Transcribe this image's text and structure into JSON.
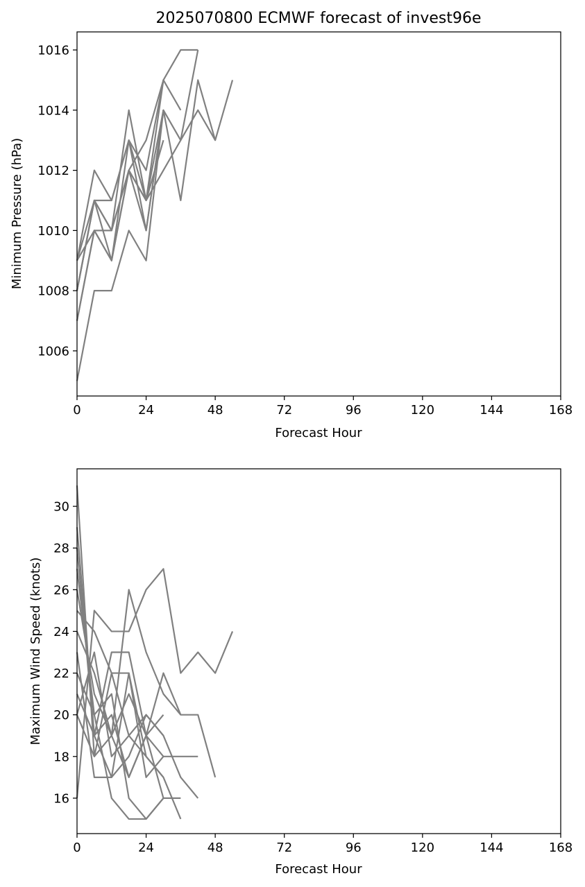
{
  "chart_data": [
    {
      "type": "line",
      "title": "2025070800 ECMWF forecast of invest96e",
      "xlabel": "Forecast Hour",
      "ylabel": "Minimum Pressure (hPa)",
      "xlim": [
        0,
        168
      ],
      "ylim": [
        1004.5,
        1016.6
      ],
      "xticks": [
        0,
        24,
        48,
        72,
        96,
        120,
        144,
        168
      ],
      "yticks": [
        1006,
        1008,
        1010,
        1012,
        1014,
        1016
      ],
      "grid": false,
      "line_color": "#808080",
      "series": [
        {
          "x": [
            0,
            6,
            12,
            18,
            24,
            30,
            36,
            42,
            48,
            54
          ],
          "values": [
            1005,
            1008,
            1008,
            1010,
            1009,
            1014,
            1011,
            1015,
            1013,
            1015
          ]
        },
        {
          "x": [
            0,
            6,
            12,
            18,
            24,
            30,
            36,
            42
          ],
          "values": [
            1009,
            1012,
            1011,
            1013,
            1012,
            1015,
            1016,
            1016
          ]
        },
        {
          "x": [
            0,
            6,
            12,
            18,
            24,
            30,
            36
          ],
          "values": [
            1008,
            1011,
            1010,
            1014,
            1011,
            1015,
            1014
          ]
        },
        {
          "x": [
            0,
            6,
            12,
            18,
            24,
            30
          ],
          "values": [
            1007,
            1010,
            1009,
            1012,
            1010,
            1014
          ]
        },
        {
          "x": [
            0,
            6,
            12,
            18,
            24,
            30,
            36,
            42,
            48
          ],
          "values": [
            1008,
            1011,
            1011,
            1013,
            1011,
            1012,
            1013,
            1014,
            1013
          ]
        },
        {
          "x": [
            0,
            6,
            12,
            18,
            24,
            30
          ],
          "values": [
            1009,
            1010,
            1010,
            1012,
            1011,
            1013
          ]
        },
        {
          "x": [
            0,
            6,
            12,
            18,
            24,
            30,
            36,
            42
          ],
          "values": [
            1008,
            1011,
            1009,
            1013,
            1010,
            1014,
            1013,
            1016
          ]
        },
        {
          "x": [
            0,
            6,
            12,
            18,
            24,
            30
          ],
          "values": [
            1007,
            1010,
            1009,
            1012,
            1011,
            1014
          ]
        },
        {
          "x": [
            0,
            6,
            12,
            18,
            24,
            30
          ],
          "values": [
            1009,
            1011,
            1010,
            1012,
            1013,
            1015
          ]
        }
      ]
    },
    {
      "type": "line",
      "title": "",
      "xlabel": "Forecast Hour",
      "ylabel": "Maximum Wind Speed (knots)",
      "xlim": [
        0,
        168
      ],
      "ylim": [
        14.3,
        31.8
      ],
      "xticks": [
        0,
        24,
        48,
        72,
        96,
        120,
        144,
        168
      ],
      "yticks": [
        16,
        18,
        20,
        22,
        24,
        26,
        28,
        30
      ],
      "grid": false,
      "line_color": "#808080",
      "series": [
        {
          "x": [
            0,
            6,
            12,
            18,
            24,
            30,
            36,
            42,
            48,
            54
          ],
          "values": [
            16,
            25,
            24,
            24,
            26,
            27,
            22,
            23,
            22,
            24
          ]
        },
        {
          "x": [
            0,
            6,
            12,
            18,
            24,
            30,
            36,
            42,
            48
          ],
          "values": [
            31,
            18,
            19,
            26,
            23,
            21,
            20,
            20,
            17
          ]
        },
        {
          "x": [
            0,
            6,
            12,
            18,
            24,
            30,
            36
          ],
          "values": [
            29,
            19,
            23,
            23,
            19,
            16,
            16
          ]
        },
        {
          "x": [
            0,
            6,
            12,
            18,
            24,
            30
          ],
          "values": [
            27,
            20,
            21,
            16,
            15,
            16
          ]
        },
        {
          "x": [
            0,
            6,
            12,
            18,
            24,
            30,
            36
          ],
          "values": [
            25,
            24,
            22,
            19,
            18,
            17,
            15
          ]
        },
        {
          "x": [
            0,
            6,
            12,
            18,
            24,
            30,
            36,
            42
          ],
          "values": [
            23,
            17,
            17,
            22,
            17,
            18,
            18,
            18
          ]
        },
        {
          "x": [
            0,
            6,
            12,
            18,
            24,
            30
          ],
          "values": [
            22,
            20,
            16,
            15,
            15,
            16
          ]
        },
        {
          "x": [
            0,
            6,
            12,
            18,
            24,
            30,
            36
          ],
          "values": [
            24,
            22,
            19,
            17,
            19,
            22,
            20
          ]
        },
        {
          "x": [
            0,
            6,
            12,
            18,
            24,
            30
          ],
          "values": [
            20,
            18,
            22,
            22,
            18,
            17
          ]
        },
        {
          "x": [
            0,
            6,
            12,
            18,
            24,
            30,
            36,
            42
          ],
          "values": [
            21,
            19,
            17,
            18,
            20,
            19,
            17,
            16
          ]
        },
        {
          "x": [
            0,
            6,
            12,
            18,
            24,
            30
          ],
          "values": [
            26,
            21,
            19,
            21,
            19,
            20
          ]
        },
        {
          "x": [
            0,
            6,
            12,
            18,
            24,
            30
          ],
          "values": [
            20,
            23,
            18,
            19,
            20,
            19
          ]
        },
        {
          "x": [
            0,
            6,
            12,
            18,
            24,
            30
          ],
          "values": [
            28,
            19,
            20,
            17,
            19,
            18
          ]
        }
      ]
    }
  ]
}
